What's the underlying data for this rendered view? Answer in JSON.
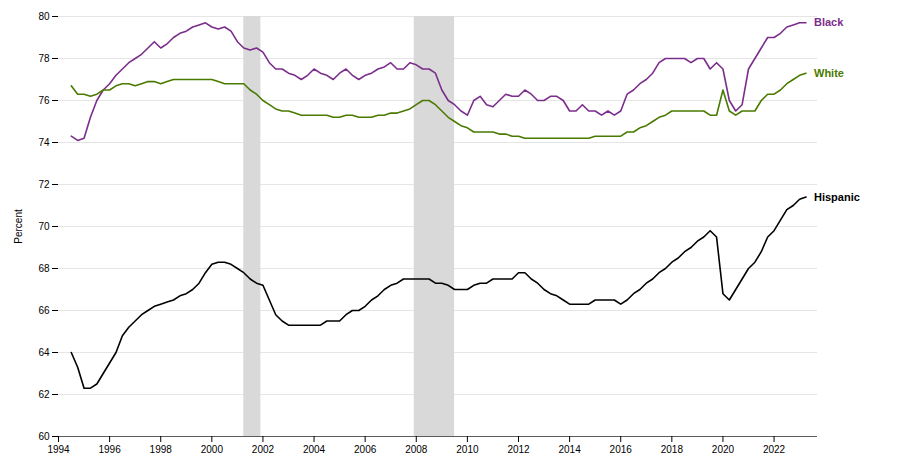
{
  "chart_data": {
    "type": "line",
    "ylabel": "Percent",
    "xlim": [
      1994.0,
      2023.7
    ],
    "ylim": [
      60,
      80
    ],
    "xticks": [
      1994,
      1996,
      1998,
      2000,
      2002,
      2004,
      2006,
      2008,
      2010,
      2012,
      2014,
      2016,
      2018,
      2020,
      2022
    ],
    "yticks": [
      60,
      62,
      64,
      66,
      68,
      70,
      72,
      74,
      76,
      78,
      80
    ],
    "grid": true,
    "recession_bands": {
      "color": "#d9d9d9",
      "spans": [
        [
          2001.25,
          2001.92
        ],
        [
          2007.92,
          2009.5
        ]
      ]
    },
    "x": [
      1994.5,
      1994.75,
      1995.0,
      1995.25,
      1995.5,
      1995.75,
      1996.0,
      1996.25,
      1996.5,
      1996.75,
      1997.0,
      1997.25,
      1997.5,
      1997.75,
      1998.0,
      1998.25,
      1998.5,
      1998.75,
      1999.0,
      1999.25,
      1999.5,
      1999.75,
      2000.0,
      2000.25,
      2000.5,
      2000.75,
      2001.0,
      2001.25,
      2001.5,
      2001.75,
      2002.0,
      2002.25,
      2002.5,
      2002.75,
      2003.0,
      2003.25,
      2003.5,
      2003.75,
      2004.0,
      2004.25,
      2004.5,
      2004.75,
      2005.0,
      2005.25,
      2005.5,
      2005.75,
      2006.0,
      2006.25,
      2006.5,
      2006.75,
      2007.0,
      2007.25,
      2007.5,
      2007.75,
      2008.0,
      2008.25,
      2008.5,
      2008.75,
      2009.0,
      2009.25,
      2009.5,
      2009.75,
      2010.0,
      2010.25,
      2010.5,
      2010.75,
      2011.0,
      2011.25,
      2011.5,
      2011.75,
      2012.0,
      2012.25,
      2012.5,
      2012.75,
      2013.0,
      2013.25,
      2013.5,
      2013.75,
      2014.0,
      2014.25,
      2014.5,
      2014.75,
      2015.0,
      2015.25,
      2015.5,
      2015.75,
      2016.0,
      2016.25,
      2016.5,
      2016.75,
      2017.0,
      2017.25,
      2017.5,
      2017.75,
      2018.0,
      2018.25,
      2018.5,
      2018.75,
      2019.0,
      2019.25,
      2019.5,
      2019.75,
      2020.0,
      2020.25,
      2020.5,
      2020.75,
      2021.0,
      2021.25,
      2021.5,
      2021.75,
      2022.0,
      2022.25,
      2022.5,
      2022.75,
      2023.0,
      2023.25
    ],
    "series": [
      {
        "name": "Black",
        "color": "#7B2D8B",
        "values": [
          74.3,
          74.1,
          74.2,
          75.2,
          76.0,
          76.5,
          76.8,
          77.2,
          77.5,
          77.8,
          78.0,
          78.2,
          78.5,
          78.8,
          78.5,
          78.7,
          79.0,
          79.2,
          79.3,
          79.5,
          79.6,
          79.7,
          79.5,
          79.4,
          79.5,
          79.3,
          78.8,
          78.5,
          78.4,
          78.5,
          78.3,
          77.8,
          77.5,
          77.5,
          77.3,
          77.2,
          77.0,
          77.2,
          77.5,
          77.3,
          77.2,
          77.0,
          77.3,
          77.5,
          77.2,
          77.0,
          77.2,
          77.3,
          77.5,
          77.6,
          77.8,
          77.5,
          77.5,
          77.8,
          77.7,
          77.5,
          77.5,
          77.3,
          76.5,
          76.0,
          75.8,
          75.5,
          75.3,
          76.0,
          76.2,
          75.8,
          75.7,
          76.0,
          76.3,
          76.2,
          76.2,
          76.5,
          76.3,
          76.0,
          76.0,
          76.2,
          76.2,
          76.0,
          75.5,
          75.5,
          75.8,
          75.5,
          75.5,
          75.3,
          75.5,
          75.3,
          75.5,
          76.3,
          76.5,
          76.8,
          77.0,
          77.3,
          77.8,
          78.0,
          78.0,
          78.0,
          78.0,
          77.8,
          78.0,
          78.0,
          77.5,
          77.8,
          77.5,
          76.0,
          75.5,
          75.8,
          77.5,
          78.0,
          78.5,
          79.0,
          79.0,
          79.2,
          79.5,
          79.6,
          79.7,
          79.7
        ]
      },
      {
        "name": "White",
        "color": "#4a7a00",
        "values": [
          76.7,
          76.3,
          76.3,
          76.2,
          76.3,
          76.5,
          76.5,
          76.7,
          76.8,
          76.8,
          76.7,
          76.8,
          76.9,
          76.9,
          76.8,
          76.9,
          77.0,
          77.0,
          77.0,
          77.0,
          77.0,
          77.0,
          77.0,
          76.9,
          76.8,
          76.8,
          76.8,
          76.8,
          76.5,
          76.3,
          76.0,
          75.8,
          75.6,
          75.5,
          75.5,
          75.4,
          75.3,
          75.3,
          75.3,
          75.3,
          75.3,
          75.2,
          75.2,
          75.3,
          75.3,
          75.2,
          75.2,
          75.2,
          75.3,
          75.3,
          75.4,
          75.4,
          75.5,
          75.6,
          75.8,
          76.0,
          76.0,
          75.8,
          75.5,
          75.2,
          75.0,
          74.8,
          74.7,
          74.5,
          74.5,
          74.5,
          74.5,
          74.4,
          74.4,
          74.3,
          74.3,
          74.2,
          74.2,
          74.2,
          74.2,
          74.2,
          74.2,
          74.2,
          74.2,
          74.2,
          74.2,
          74.2,
          74.3,
          74.3,
          74.3,
          74.3,
          74.3,
          74.5,
          74.5,
          74.7,
          74.8,
          75.0,
          75.2,
          75.3,
          75.5,
          75.5,
          75.5,
          75.5,
          75.5,
          75.5,
          75.3,
          75.3,
          76.5,
          75.5,
          75.3,
          75.5,
          75.5,
          75.5,
          76.0,
          76.3,
          76.3,
          76.5,
          76.8,
          77.0,
          77.2,
          77.3
        ]
      },
      {
        "name": "Hispanic",
        "color": "#000000",
        "values": [
          64.0,
          63.3,
          62.3,
          62.3,
          62.5,
          63.0,
          63.5,
          64.0,
          64.8,
          65.2,
          65.5,
          65.8,
          66.0,
          66.2,
          66.3,
          66.4,
          66.5,
          66.7,
          66.8,
          67.0,
          67.3,
          67.8,
          68.2,
          68.3,
          68.3,
          68.2,
          68.0,
          67.8,
          67.5,
          67.3,
          67.2,
          66.5,
          65.8,
          65.5,
          65.3,
          65.3,
          65.3,
          65.3,
          65.3,
          65.3,
          65.5,
          65.5,
          65.5,
          65.8,
          66.0,
          66.0,
          66.2,
          66.5,
          66.7,
          67.0,
          67.2,
          67.3,
          67.5,
          67.5,
          67.5,
          67.5,
          67.5,
          67.3,
          67.3,
          67.2,
          67.0,
          67.0,
          67.0,
          67.2,
          67.3,
          67.3,
          67.5,
          67.5,
          67.5,
          67.5,
          67.8,
          67.8,
          67.5,
          67.3,
          67.0,
          66.8,
          66.7,
          66.5,
          66.3,
          66.3,
          66.3,
          66.3,
          66.5,
          66.5,
          66.5,
          66.5,
          66.3,
          66.5,
          66.8,
          67.0,
          67.3,
          67.5,
          67.8,
          68.0,
          68.3,
          68.5,
          68.8,
          69.0,
          69.3,
          69.5,
          69.8,
          69.5,
          66.8,
          66.5,
          67.0,
          67.5,
          68.0,
          68.3,
          68.8,
          69.5,
          69.8,
          70.3,
          70.8,
          71.0,
          71.3,
          71.4
        ]
      }
    ]
  }
}
